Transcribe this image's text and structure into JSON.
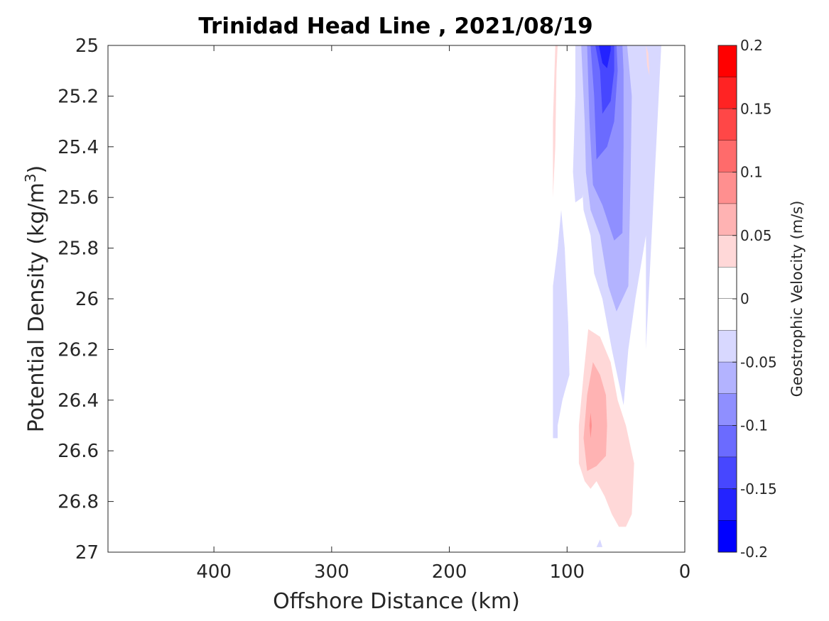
{
  "chart_data": {
    "type": "contour",
    "title": "Trinidad Head Line , 2021/08/19",
    "xlabel": "Offshore Distance (km)",
    "ylabel": "Potential Density (kg/m",
    "ylabel_sup": "3",
    "ylabel_tail": ")",
    "xlim": [
      490,
      0
    ],
    "x_reversed": true,
    "ylim": [
      25,
      27
    ],
    "y_reversed": true,
    "xticks": [
      400,
      300,
      200,
      100,
      0
    ],
    "yticks": [
      25,
      25.2,
      25.4,
      25.6,
      25.8,
      26,
      26.2,
      26.4,
      26.6,
      26.8,
      27
    ],
    "ytick_labels": [
      "25",
      "25.2",
      "25.4",
      "25.6",
      "25.8",
      "26",
      "26.2",
      "26.4",
      "26.6",
      "26.8",
      "27"
    ],
    "colorbar": {
      "label": "Geostrophic Velocity (m/s)",
      "range": [
        -0.2,
        0.2
      ],
      "ticks": [
        0.2,
        0.15,
        0.1,
        0.05,
        0,
        -0.05,
        -0.1,
        -0.15,
        -0.2
      ],
      "tick_labels": [
        "0.2",
        "0.15",
        "0.1",
        "0.05",
        "0",
        "-0.05",
        "-0.1",
        "-0.15",
        "-0.2"
      ],
      "levels": [
        {
          "from": 0.175,
          "to": 0.2,
          "color": "#ff0000"
        },
        {
          "from": 0.15,
          "to": 0.175,
          "color": "#ff2323"
        },
        {
          "from": 0.125,
          "to": 0.15,
          "color": "#ff4747"
        },
        {
          "from": 0.1,
          "to": 0.125,
          "color": "#ff6b6b"
        },
        {
          "from": 0.075,
          "to": 0.1,
          "color": "#ff8f8f"
        },
        {
          "from": 0.05,
          "to": 0.075,
          "color": "#ffb3b3"
        },
        {
          "from": 0.025,
          "to": 0.05,
          "color": "#ffd8d8"
        },
        {
          "from": 0,
          "to": 0.025,
          "color": "#ffffff"
        },
        {
          "from": -0.025,
          "to": 0,
          "color": "#ffffff"
        },
        {
          "from": -0.05,
          "to": -0.025,
          "color": "#d8d8ff"
        },
        {
          "from": -0.075,
          "to": -0.05,
          "color": "#b3b3ff"
        },
        {
          "from": -0.1,
          "to": -0.075,
          "color": "#8f8fff"
        },
        {
          "from": -0.125,
          "to": -0.1,
          "color": "#6b6bff"
        },
        {
          "from": -0.15,
          "to": -0.125,
          "color": "#4747ff"
        },
        {
          "from": -0.175,
          "to": -0.15,
          "color": "#2323ff"
        },
        {
          "from": -0.2,
          "to": -0.175,
          "color": "#0000ff"
        }
      ]
    },
    "regions": [
      {
        "name": "neg-level-1",
        "value": -0.0375,
        "color": "#d8d8ff",
        "points": [
          [
            80,
            25
          ],
          [
            87,
            25.1
          ],
          [
            88,
            25.3
          ],
          [
            88,
            25.5
          ],
          [
            86,
            25.65
          ],
          [
            80,
            25.75
          ],
          [
            77,
            25.9
          ],
          [
            70,
            26.0
          ],
          [
            62,
            26.2
          ],
          [
            52,
            26.42
          ],
          [
            48,
            26.2
          ],
          [
            42,
            26.0
          ],
          [
            33,
            25.75
          ],
          [
            33,
            26.0
          ],
          [
            33,
            26.2
          ],
          [
            20,
            25.0
          ]
        ]
      },
      {
        "name": "neg-level-1b",
        "value": -0.0375,
        "color": "#d8d8ff",
        "points": [
          [
            102,
            25.8
          ],
          [
            99,
            26.1
          ],
          [
            98,
            26.3
          ],
          [
            104,
            26.4
          ],
          [
            108,
            26.5
          ],
          [
            108,
            26.55
          ],
          [
            112,
            26.55
          ],
          [
            112,
            26.2
          ],
          [
            112,
            25.95
          ],
          [
            108,
            25.8
          ],
          [
            105,
            25.65
          ]
        ]
      },
      {
        "name": "neg-level-1c",
        "value": -0.0375,
        "color": "#d8d8ff",
        "points": [
          [
            82,
            25
          ],
          [
            93,
            25.0
          ],
          [
            93,
            25.2
          ],
          [
            95,
            25.5
          ],
          [
            93,
            25.62
          ],
          [
            87,
            25.6
          ],
          [
            82,
            25.4
          ]
        ]
      },
      {
        "name": "neg-level-2",
        "value": -0.0625,
        "color": "#b3b3ff",
        "points": [
          [
            88,
            25
          ],
          [
            85,
            25.3
          ],
          [
            84,
            25.5
          ],
          [
            80,
            25.65
          ],
          [
            72,
            25.75
          ],
          [
            65,
            25.95
          ],
          [
            58,
            26.05
          ],
          [
            48,
            25.95
          ],
          [
            46,
            25.5
          ],
          [
            45,
            25.2
          ],
          [
            49,
            25
          ]
        ]
      },
      {
        "name": "neg-level-3",
        "value": -0.0875,
        "color": "#8f8fff",
        "points": [
          [
            83,
            25
          ],
          [
            81,
            25.3
          ],
          [
            78,
            25.55
          ],
          [
            70,
            25.63
          ],
          [
            60,
            25.77
          ],
          [
            53,
            25.74
          ],
          [
            52,
            25.4
          ],
          [
            52,
            25.1
          ],
          [
            53,
            25
          ]
        ]
      },
      {
        "name": "neg-level-4",
        "value": -0.1125,
        "color": "#6b6bff",
        "points": [
          [
            80,
            25
          ],
          [
            77,
            25.2
          ],
          [
            75,
            25.45
          ],
          [
            66,
            25.4
          ],
          [
            60,
            25.3
          ],
          [
            57,
            25.1
          ],
          [
            58,
            25
          ]
        ]
      },
      {
        "name": "neg-level-5",
        "value": -0.1375,
        "color": "#4747ff",
        "points": [
          [
            76,
            25
          ],
          [
            72,
            25.1
          ],
          [
            70,
            25.27
          ],
          [
            63,
            25.22
          ],
          [
            60,
            25.1
          ],
          [
            60,
            25
          ]
        ]
      },
      {
        "name": "neg-level-6",
        "value": -0.1625,
        "color": "#2323ff",
        "points": [
          [
            73,
            25
          ],
          [
            70,
            25.07
          ],
          [
            66,
            25.09
          ],
          [
            63,
            25.02
          ],
          [
            63,
            25
          ]
        ]
      },
      {
        "name": "pos-level-1",
        "value": 0.0375,
        "color": "#ffd8d8",
        "points": [
          [
            110,
            25
          ],
          [
            112,
            25.3
          ],
          [
            112,
            25.6
          ],
          [
            110,
            25.4
          ],
          [
            109,
            25.1
          ],
          [
            108,
            25
          ]
        ]
      },
      {
        "name": "pos-level-1b",
        "value": 0.0375,
        "color": "#ffd8d8",
        "points": [
          [
            82,
            26.12
          ],
          [
            86,
            26.3
          ],
          [
            90,
            26.5
          ],
          [
            90,
            26.65
          ],
          [
            85,
            26.72
          ],
          [
            80,
            26.75
          ],
          [
            75,
            26.72
          ],
          [
            68,
            26.78
          ],
          [
            62,
            26.85
          ],
          [
            56,
            26.9
          ],
          [
            50,
            26.9
          ],
          [
            45,
            26.85
          ],
          [
            43,
            26.65
          ],
          [
            50,
            26.5
          ],
          [
            57,
            26.4
          ],
          [
            63,
            26.25
          ],
          [
            72,
            26.15
          ]
        ]
      },
      {
        "name": "pos-level-1c",
        "value": 0.0375,
        "color": "#ffd8d8",
        "points": [
          [
            33,
            25
          ],
          [
            32,
            25.08
          ],
          [
            30,
            25.12
          ],
          [
            31,
            25.03
          ]
        ]
      },
      {
        "name": "pos-level-2",
        "value": 0.0625,
        "color": "#ffb3b3",
        "points": [
          [
            78,
            26.25
          ],
          [
            83,
            26.38
          ],
          [
            86,
            26.55
          ],
          [
            83,
            26.68
          ],
          [
            75,
            26.66
          ],
          [
            67,
            26.62
          ],
          [
            66,
            26.5
          ],
          [
            67,
            26.38
          ],
          [
            72,
            26.3
          ]
        ]
      },
      {
        "name": "pos-level-3",
        "value": 0.0875,
        "color": "#ff8f8f",
        "points": [
          [
            80,
            26.45
          ],
          [
            81,
            26.5
          ],
          [
            80,
            26.55
          ],
          [
            79,
            26.5
          ]
        ]
      },
      {
        "name": "neg-level-1d",
        "value": -0.0375,
        "color": "#d8d8ff",
        "points": [
          [
            72,
            26.95
          ],
          [
            75,
            26.98
          ],
          [
            70,
            26.98
          ]
        ]
      }
    ]
  }
}
